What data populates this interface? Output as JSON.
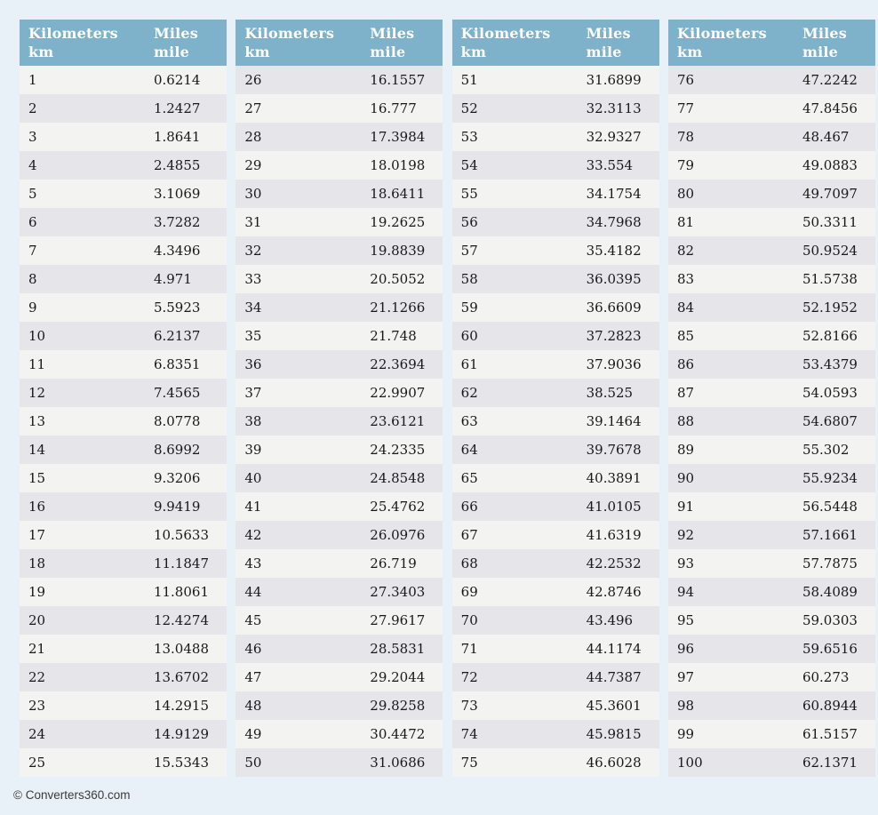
{
  "colors": {
    "page_bg": "#e8f1f7",
    "header_bg": "#7db2ca",
    "header_text": "#ffffff",
    "row_odd": "#f3f3f1",
    "row_even": "#e6e6ea",
    "cell_text": "#181818",
    "footer_text": "#3a3a3a"
  },
  "header_labels": {
    "kilometers": "Kilometers",
    "km": "km",
    "miles": "Miles",
    "mile": "mile"
  },
  "footer": {
    "copyright": "© Converters360.com"
  },
  "tables": [
    {
      "rows": [
        [
          "1",
          "0.6214"
        ],
        [
          "2",
          "1.2427"
        ],
        [
          "3",
          "1.8641"
        ],
        [
          "4",
          "2.4855"
        ],
        [
          "5",
          "3.1069"
        ],
        [
          "6",
          "3.7282"
        ],
        [
          "7",
          "4.3496"
        ],
        [
          "8",
          "4.971"
        ],
        [
          "9",
          "5.5923"
        ],
        [
          "10",
          "6.2137"
        ],
        [
          "11",
          "6.8351"
        ],
        [
          "12",
          "7.4565"
        ],
        [
          "13",
          "8.0778"
        ],
        [
          "14",
          "8.6992"
        ],
        [
          "15",
          "9.3206"
        ],
        [
          "16",
          "9.9419"
        ],
        [
          "17",
          "10.5633"
        ],
        [
          "18",
          "11.1847"
        ],
        [
          "19",
          "11.8061"
        ],
        [
          "20",
          "12.4274"
        ],
        [
          "21",
          "13.0488"
        ],
        [
          "22",
          "13.6702"
        ],
        [
          "23",
          "14.2915"
        ],
        [
          "24",
          "14.9129"
        ],
        [
          "25",
          "15.5343"
        ]
      ]
    },
    {
      "rows": [
        [
          "26",
          "16.1557"
        ],
        [
          "27",
          "16.777"
        ],
        [
          "28",
          "17.3984"
        ],
        [
          "29",
          "18.0198"
        ],
        [
          "30",
          "18.6411"
        ],
        [
          "31",
          "19.2625"
        ],
        [
          "32",
          "19.8839"
        ],
        [
          "33",
          "20.5052"
        ],
        [
          "34",
          "21.1266"
        ],
        [
          "35",
          "21.748"
        ],
        [
          "36",
          "22.3694"
        ],
        [
          "37",
          "22.9907"
        ],
        [
          "38",
          "23.6121"
        ],
        [
          "39",
          "24.2335"
        ],
        [
          "40",
          "24.8548"
        ],
        [
          "41",
          "25.4762"
        ],
        [
          "42",
          "26.0976"
        ],
        [
          "43",
          "26.719"
        ],
        [
          "44",
          "27.3403"
        ],
        [
          "45",
          "27.9617"
        ],
        [
          "46",
          "28.5831"
        ],
        [
          "47",
          "29.2044"
        ],
        [
          "48",
          "29.8258"
        ],
        [
          "49",
          "30.4472"
        ],
        [
          "50",
          "31.0686"
        ]
      ]
    },
    {
      "rows": [
        [
          "51",
          "31.6899"
        ],
        [
          "52",
          "32.3113"
        ],
        [
          "53",
          "32.9327"
        ],
        [
          "54",
          "33.554"
        ],
        [
          "55",
          "34.1754"
        ],
        [
          "56",
          "34.7968"
        ],
        [
          "57",
          "35.4182"
        ],
        [
          "58",
          "36.0395"
        ],
        [
          "59",
          "36.6609"
        ],
        [
          "60",
          "37.2823"
        ],
        [
          "61",
          "37.9036"
        ],
        [
          "62",
          "38.525"
        ],
        [
          "63",
          "39.1464"
        ],
        [
          "64",
          "39.7678"
        ],
        [
          "65",
          "40.3891"
        ],
        [
          "66",
          "41.0105"
        ],
        [
          "67",
          "41.6319"
        ],
        [
          "68",
          "42.2532"
        ],
        [
          "69",
          "42.8746"
        ],
        [
          "70",
          "43.496"
        ],
        [
          "71",
          "44.1174"
        ],
        [
          "72",
          "44.7387"
        ],
        [
          "73",
          "45.3601"
        ],
        [
          "74",
          "45.9815"
        ],
        [
          "75",
          "46.6028"
        ]
      ]
    },
    {
      "rows": [
        [
          "76",
          "47.2242"
        ],
        [
          "77",
          "47.8456"
        ],
        [
          "78",
          "48.467"
        ],
        [
          "79",
          "49.0883"
        ],
        [
          "80",
          "49.7097"
        ],
        [
          "81",
          "50.3311"
        ],
        [
          "82",
          "50.9524"
        ],
        [
          "83",
          "51.5738"
        ],
        [
          "84",
          "52.1952"
        ],
        [
          "85",
          "52.8166"
        ],
        [
          "86",
          "53.4379"
        ],
        [
          "87",
          "54.0593"
        ],
        [
          "88",
          "54.6807"
        ],
        [
          "89",
          "55.302"
        ],
        [
          "90",
          "55.9234"
        ],
        [
          "91",
          "56.5448"
        ],
        [
          "92",
          "57.1661"
        ],
        [
          "93",
          "57.7875"
        ],
        [
          "94",
          "58.4089"
        ],
        [
          "95",
          "59.0303"
        ],
        [
          "96",
          "59.6516"
        ],
        [
          "97",
          "60.273"
        ],
        [
          "98",
          "60.8944"
        ],
        [
          "99",
          "61.5157"
        ],
        [
          "100",
          "62.1371"
        ]
      ]
    }
  ]
}
